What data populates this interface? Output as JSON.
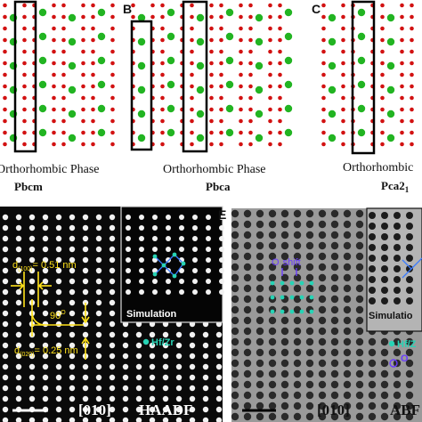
{
  "colors": {
    "oxygen": "#d21212",
    "metal": "#22b422",
    "haadf_bg": "#0a0a0a",
    "haadf_spot": "#f2f2f2",
    "abf_bg": "#9a9a9a",
    "annotation": "#ffe21a",
    "sim_atoms": "#27d3b5",
    "oxygen_label": "#6a3cff"
  },
  "panels": {
    "A": {
      "letter": "",
      "phase": "Orthorhombic Phase",
      "space_group": "Pbcm"
    },
    "B": {
      "letter": "B",
      "phase": "Orthorhombic Phase",
      "space_group": "Pbca"
    },
    "C": {
      "letter": "C",
      "phase": "Orthorhombic",
      "space_group_main": "Pca2",
      "space_group_sub": "1"
    },
    "D": {
      "d100_label": "d",
      "d100_index": "(100)",
      "d100_value": "= 0.51 nm",
      "angle_label": "90",
      "angle_sup": "O",
      "d020_label": "d",
      "d020_index": "(020)",
      "d020_value": "= 0.25 nm",
      "sim_label": "Simulation",
      "legend": "Hf/Zr",
      "zone_axis": "[010]",
      "mode": "HAADF"
    },
    "E": {
      "letter": "E",
      "oxygen_shift_symbol": "O",
      "oxygen_shift_text": "shift",
      "sim_label": "Simulatio",
      "legend_partial": "Hf/Z",
      "oxygen_symbol": "O",
      "zone_axis": "[010]",
      "mode": "ABF"
    }
  }
}
